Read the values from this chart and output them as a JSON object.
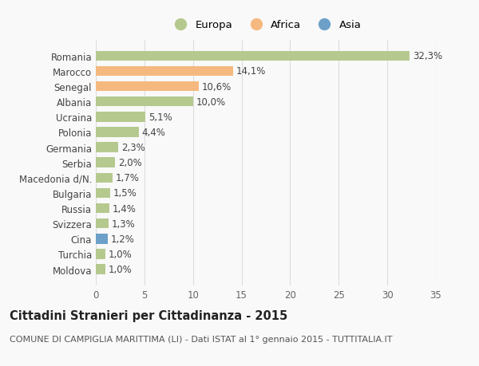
{
  "countries": [
    "Romania",
    "Marocco",
    "Senegal",
    "Albania",
    "Ucraina",
    "Polonia",
    "Germania",
    "Serbia",
    "Macedonia d/N.",
    "Bulgaria",
    "Russia",
    "Svizzera",
    "Cina",
    "Turchia",
    "Moldova"
  ],
  "values": [
    32.3,
    14.1,
    10.6,
    10.0,
    5.1,
    4.4,
    2.3,
    2.0,
    1.7,
    1.5,
    1.4,
    1.3,
    1.2,
    1.0,
    1.0
  ],
  "labels": [
    "32,3%",
    "14,1%",
    "10,6%",
    "10,0%",
    "5,1%",
    "4,4%",
    "2,3%",
    "2,0%",
    "1,7%",
    "1,5%",
    "1,4%",
    "1,3%",
    "1,2%",
    "1,0%",
    "1,0%"
  ],
  "continents": [
    "Europa",
    "Africa",
    "Africa",
    "Europa",
    "Europa",
    "Europa",
    "Europa",
    "Europa",
    "Europa",
    "Europa",
    "Europa",
    "Europa",
    "Asia",
    "Europa",
    "Europa"
  ],
  "colors": {
    "Europa": "#b5c98e",
    "Africa": "#f5b97f",
    "Asia": "#6ca0c8"
  },
  "title": "Cittadini Stranieri per Cittadinanza - 2015",
  "subtitle": "COMUNE DI CAMPIGLIA MARITTIMA (LI) - Dati ISTAT al 1° gennaio 2015 - TUTTITALIA.IT",
  "xlim": [
    0,
    35
  ],
  "xticks": [
    0,
    5,
    10,
    15,
    20,
    25,
    30,
    35
  ],
  "background_color": "#f9f9f9",
  "grid_color": "#dddddd",
  "bar_height": 0.65,
  "label_fontsize": 8.5,
  "tick_fontsize": 8.5,
  "title_fontsize": 10.5,
  "subtitle_fontsize": 8.0
}
